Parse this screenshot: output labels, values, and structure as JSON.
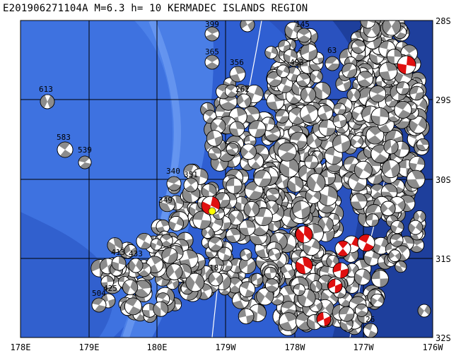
{
  "title": "E201906271104A M=6.3 h= 10 KERMADEC ISLANDS REGION",
  "colors": {
    "deep": "#1e3f9c",
    "mid": "#2f5fd2",
    "shallow": "#4a7ee6",
    "ridge": "#6b9cf2",
    "grid": "#000000",
    "compression": "#8c8c8c",
    "highlight": "#e01010",
    "epicenter": "#ffff00"
  },
  "lon_labels": [
    "178E",
    "179E",
    "180E",
    "179W",
    "178W",
    "177W",
    "176W"
  ],
  "lat_labels": [
    "28S",
    "29S",
    "30S",
    "31S",
    "32S"
  ],
  "mechanism_labels": [
    "613",
    "583",
    "539",
    "399",
    "365",
    "356",
    "262",
    "340",
    "351",
    "413",
    "433",
    "425",
    "504",
    "63",
    "26",
    "187",
    "349",
    "145",
    "493"
  ]
}
